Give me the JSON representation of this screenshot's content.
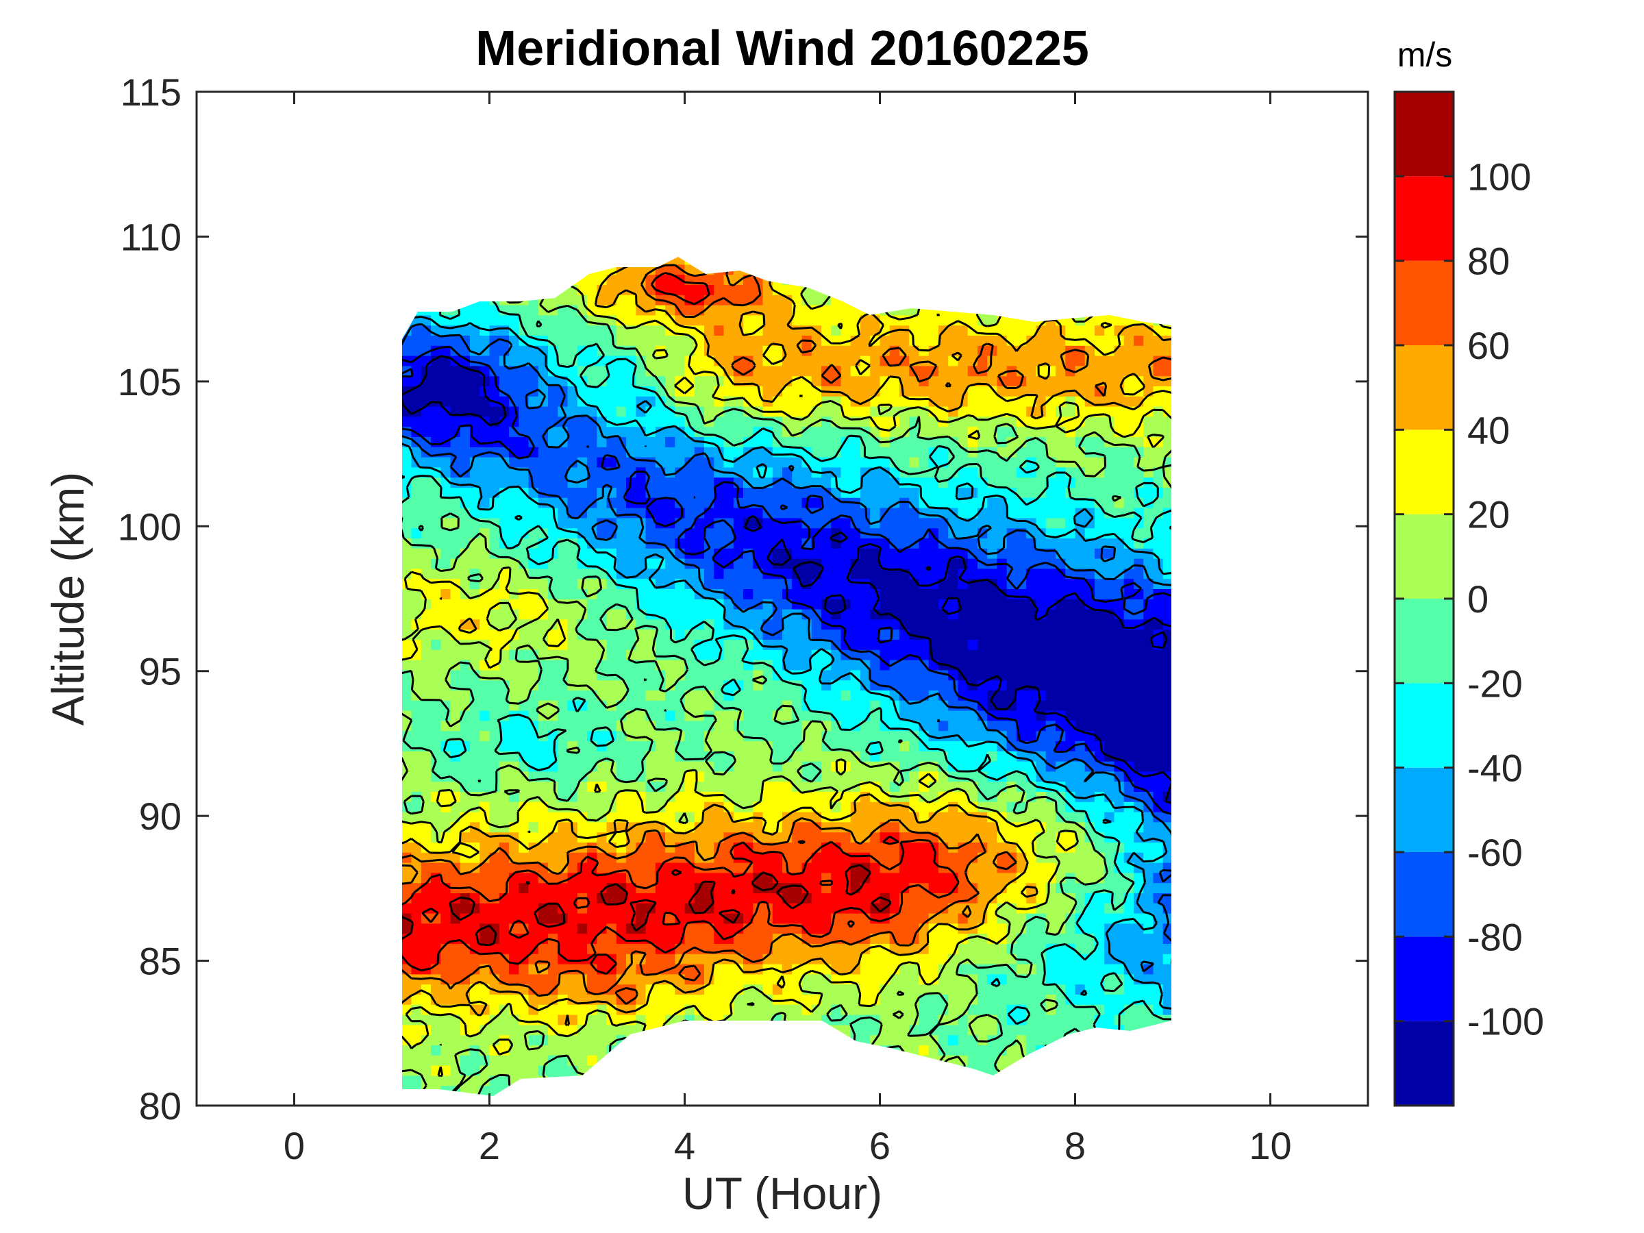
{
  "chart_data": {
    "type": "heatmap",
    "title": "Meridional Wind 20160225",
    "xlabel": "UT (Hour)",
    "ylabel": "Altitude (km)",
    "xlim": [
      -1,
      11
    ],
    "ylim": [
      80,
      115
    ],
    "xticks": [
      0,
      2,
      4,
      6,
      8,
      10
    ],
    "yticks": [
      80,
      85,
      90,
      95,
      100,
      105,
      110,
      115
    ],
    "data_extent": {
      "x": [
        1.1,
        9.0
      ],
      "y": [
        80.5,
        109.3
      ]
    },
    "colorbar": {
      "unit": "m/s",
      "range": [
        -120,
        120
      ],
      "ticks": [
        -100,
        -80,
        -60,
        -40,
        -20,
        0,
        20,
        40,
        60,
        80,
        100
      ],
      "levels": [
        -120,
        -100,
        -80,
        -60,
        -40,
        -20,
        0,
        20,
        40,
        60,
        80,
        100,
        120
      ],
      "colors": [
        "#0000A6",
        "#0000FF",
        "#0055FF",
        "#00AAFF",
        "#00FFFF",
        "#55FFAA",
        "#AAFF55",
        "#FFFF00",
        "#FFAA00",
        "#FF5500",
        "#FF0000",
        "#A60000"
      ]
    },
    "features": [
      {
        "region": "83-89 km, 1-6 UT",
        "value_range": [
          40,
          100
        ],
        "desc": "northward maximum"
      },
      {
        "region": "92-100 km, 5-9 UT",
        "value_range": [
          -120,
          -80
        ],
        "desc": "southward maximum"
      },
      {
        "region": "103-108 km, 4-9 UT",
        "value_range": [
          20,
          80
        ]
      }
    ]
  }
}
